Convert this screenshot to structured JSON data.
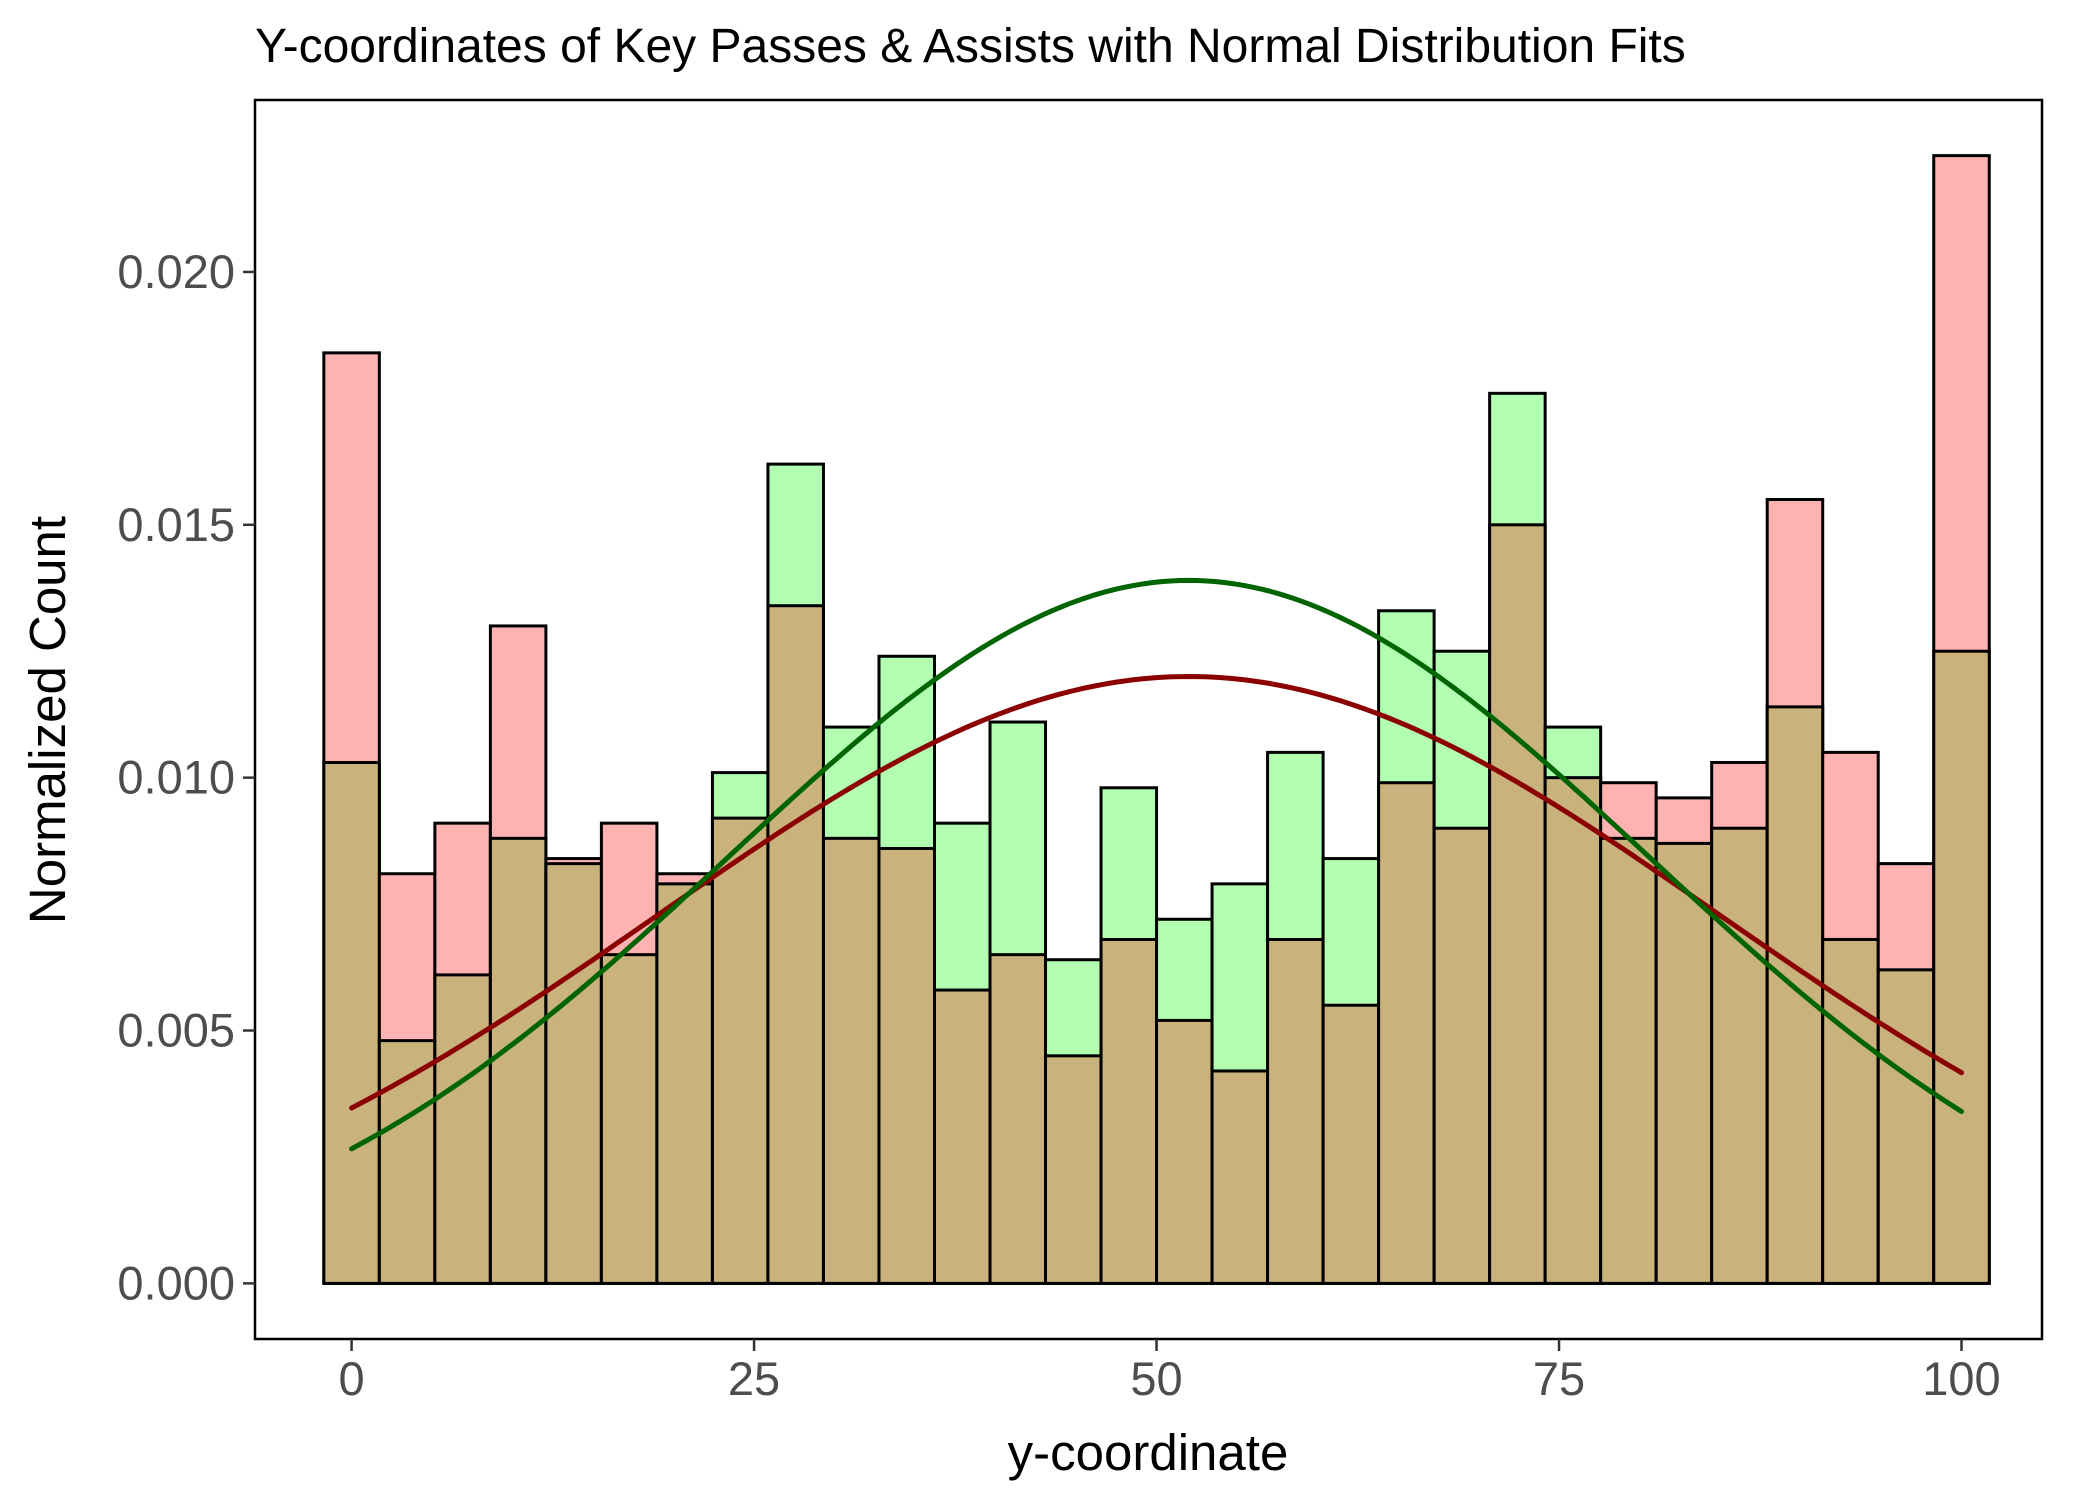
{
  "chart_data": {
    "type": "bar",
    "title": "Y-coordinates of Key Passes & Assists with Normal Distribution Fits",
    "xlabel": "y-coordinate",
    "ylabel": "Normalized Count",
    "xlim": [
      -6,
      105
    ],
    "ylim": [
      -0.0011,
      0.0234
    ],
    "x_ticks": [
      0,
      25,
      50,
      75,
      100
    ],
    "x_tick_labels": [
      "0",
      "25",
      "50",
      "75",
      "100"
    ],
    "y_ticks": [
      0,
      0.005,
      0.01,
      0.015,
      0.02
    ],
    "y_tick_labels": [
      "0.000",
      "0.005",
      "0.010",
      "0.015",
      "0.020"
    ],
    "grid": false,
    "legend": "none",
    "bin_width": 3.448,
    "bin_centers": [
      0,
      3.448,
      6.897,
      10.345,
      13.793,
      17.241,
      20.69,
      24.138,
      27.586,
      31.034,
      34.483,
      37.931,
      41.379,
      44.828,
      48.276,
      51.724,
      55.172,
      58.621,
      62.069,
      65.517,
      68.966,
      72.414,
      75.862,
      79.31,
      82.759,
      86.207,
      89.655,
      93.103,
      96.552,
      100
    ],
    "series": [
      {
        "color": "#ffb2b2",
        "fit_color": "#8b0000",
        "values": [
          0.0184,
          0.0081,
          0.0091,
          0.013,
          0.0084,
          0.0091,
          0.0081,
          0.0092,
          0.0134,
          0.0088,
          0.0086,
          0.0058,
          0.0065,
          0.0045,
          0.0068,
          0.0052,
          0.0042,
          0.0068,
          0.0055,
          0.0099,
          0.009,
          0.015,
          0.01,
          0.0099,
          0.0096,
          0.0103,
          0.0155,
          0.0105,
          0.0083,
          0.0223
        ],
        "fit": {
          "mean": 52,
          "sd": 33,
          "peak": 0.012,
          "x_range": [
            0,
            100
          ]
        }
      },
      {
        "color": "#b2ffb2",
        "fit_color": "#006400",
        "values": [
          0.0103,
          0.0048,
          0.0061,
          0.0088,
          0.0083,
          0.0065,
          0.0079,
          0.0101,
          0.0162,
          0.011,
          0.0124,
          0.0091,
          0.0111,
          0.0064,
          0.0098,
          0.0072,
          0.0079,
          0.0105,
          0.0084,
          0.0133,
          0.0125,
          0.0176,
          0.011,
          0.0088,
          0.0087,
          0.009,
          0.0114,
          0.0068,
          0.0062,
          0.0125
        ],
        "fit": {
          "mean": 52,
          "sd": 28.6,
          "peak": 0.0139,
          "x_range": [
            0,
            100
          ]
        }
      }
    ],
    "overlap_color": "#c9b27c"
  }
}
